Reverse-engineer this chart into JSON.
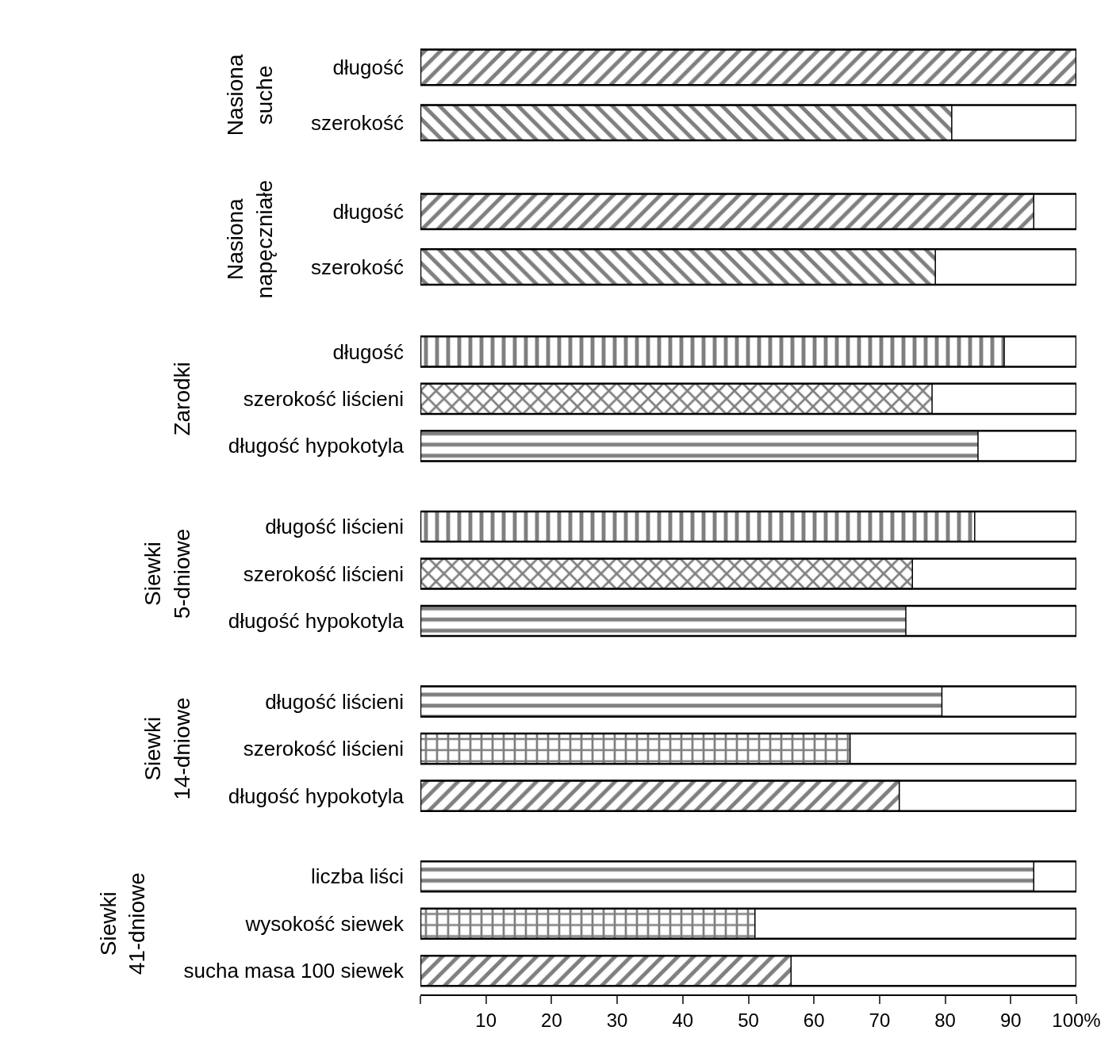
{
  "chart_data": [
    {
      "type": "bar",
      "orientation": "horizontal",
      "title": "Nasiona suche",
      "categories": [
        "długość",
        "szerokość"
      ],
      "values": [
        100,
        81
      ],
      "color": "#000000",
      "xlim": [
        0,
        100
      ],
      "tick_labels": "y"
    },
    {
      "type": "bar",
      "orientation": "horizontal",
      "title": "Nasiona napęczniałe",
      "categories": [
        "długość",
        "szerokość"
      ],
      "values": [
        93.5,
        78.5
      ],
      "color": "#000000",
      "xlim": [
        0,
        100
      ],
      "tick_labels": "y"
    },
    {
      "type": "bar",
      "orientation": "horizontal",
      "title": "Zarodki",
      "categories": [
        "długość",
        "szerokość liścieni",
        "długość hypokotyla"
      ],
      "values": [
        89,
        78,
        85
      ],
      "color": "#000000",
      "xlim": [
        0,
        100
      ],
      "tick_labels": "y"
    },
    {
      "type": "bar",
      "orientation": "horizontal",
      "title": "Siewki 5-dniowe",
      "categories": [
        "długość liścieni",
        "szerokość liścieni",
        "długość hypokotyla"
      ],
      "values": [
        84.5,
        75,
        74
      ],
      "color": "#000000",
      "xlim": [
        0,
        100
      ],
      "tick_labels": "y"
    },
    {
      "type": "bar",
      "orientation": "horizontal",
      "title": "Siewki 14-dniowe",
      "categories": [
        "długość liścieni",
        "szerokość liścieni",
        "długość hypokotyla"
      ],
      "values": [
        79.5,
        65.5,
        73
      ],
      "color": "#000000",
      "xlim": [
        0,
        100
      ],
      "tick_labels": "y"
    },
    {
      "type": "bar",
      "orientation": "horizontal",
      "title": "Siewki 41-dniowe",
      "categories": [
        "liczba liści",
        "wysokość siewek",
        "sucha masa 100 siewek"
      ],
      "values": [
        93.5,
        51,
        56.5
      ],
      "color": "#000000",
      "xlim": [
        0,
        100
      ],
      "xticks": [
        {
          "value": 0,
          "label": null
        },
        10,
        20,
        30,
        40,
        50,
        60,
        70,
        80,
        90,
        {
          "value": 100,
          "label": "100%"
        }
      ]
    }
  ]
}
